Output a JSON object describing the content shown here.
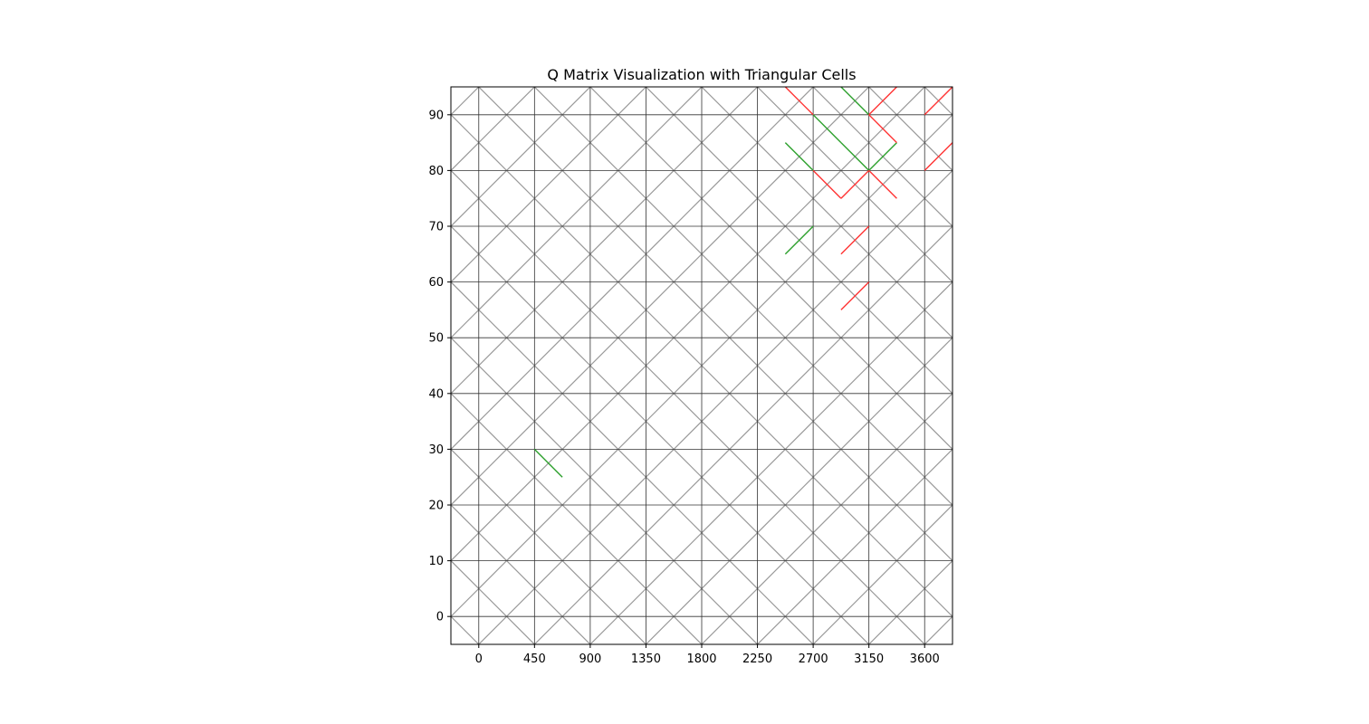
{
  "chart_data": {
    "type": "heatmap",
    "title": "Q Matrix Visualization with Triangular Cells",
    "xlabel": "",
    "ylabel": "",
    "x_ticks": [
      0,
      450,
      900,
      1350,
      1800,
      2250,
      2700,
      3150,
      3600
    ],
    "y_ticks": [
      0,
      10,
      20,
      30,
      40,
      50,
      60,
      70,
      80,
      90
    ],
    "xlim": [
      -225,
      3825
    ],
    "ylim": [
      -5,
      95
    ],
    "grid_x": [
      0,
      450,
      900,
      1350,
      1800,
      2250,
      2700,
      3150,
      3600
    ],
    "grid_y": [
      0,
      10,
      20,
      30,
      40,
      50,
      60,
      70,
      80,
      90
    ],
    "diamond_centers_x": [
      -225,
      225,
      675,
      1125,
      1575,
      2025,
      2475,
      2925,
      3375,
      3825
    ],
    "diamond_centers_y": [
      -5,
      5,
      15,
      25,
      35,
      45,
      55,
      65,
      75,
      85,
      95
    ],
    "grid": true,
    "legend": "none",
    "colors": {
      "diagonal_default": "#999999",
      "grid_line": "#333333",
      "positive": "#2ca02c",
      "negative": "#ff3333",
      "axes": "#000000"
    },
    "highlighted_edges": [
      {
        "from": [
          450,
          30
        ],
        "to": [
          675,
          25
        ],
        "sign": "positive"
      },
      {
        "from": [
          2475,
          65
        ],
        "to": [
          2700,
          70
        ],
        "sign": "positive"
      },
      {
        "from": [
          2475,
          85
        ],
        "to": [
          2700,
          80
        ],
        "sign": "positive"
      },
      {
        "from": [
          2700,
          90
        ],
        "to": [
          2925,
          85
        ],
        "sign": "positive"
      },
      {
        "from": [
          2925,
          85
        ],
        "to": [
          3150,
          80
        ],
        "sign": "positive"
      },
      {
        "from": [
          3150,
          80
        ],
        "to": [
          3375,
          85
        ],
        "sign": "positive"
      },
      {
        "from": [
          2925,
          95
        ],
        "to": [
          3150,
          90
        ],
        "sign": "positive"
      },
      {
        "from": [
          2475,
          95
        ],
        "to": [
          2700,
          90
        ],
        "sign": "negative"
      },
      {
        "from": [
          3150,
          90
        ],
        "to": [
          3375,
          95
        ],
        "sign": "negative"
      },
      {
        "from": [
          3150,
          90
        ],
        "to": [
          3375,
          85
        ],
        "sign": "negative"
      },
      {
        "from": [
          2700,
          80
        ],
        "to": [
          2925,
          75
        ],
        "sign": "negative"
      },
      {
        "from": [
          2925,
          75
        ],
        "to": [
          3150,
          80
        ],
        "sign": "negative"
      },
      {
        "from": [
          3150,
          80
        ],
        "to": [
          3375,
          75
        ],
        "sign": "negative"
      },
      {
        "from": [
          2925,
          65
        ],
        "to": [
          3150,
          70
        ],
        "sign": "negative"
      },
      {
        "from": [
          2925,
          55
        ],
        "to": [
          3150,
          60
        ],
        "sign": "negative"
      },
      {
        "from": [
          3600,
          90
        ],
        "to": [
          3825,
          95
        ],
        "sign": "negative"
      },
      {
        "from": [
          3600,
          80
        ],
        "to": [
          3825,
          85
        ],
        "sign": "negative"
      }
    ]
  }
}
